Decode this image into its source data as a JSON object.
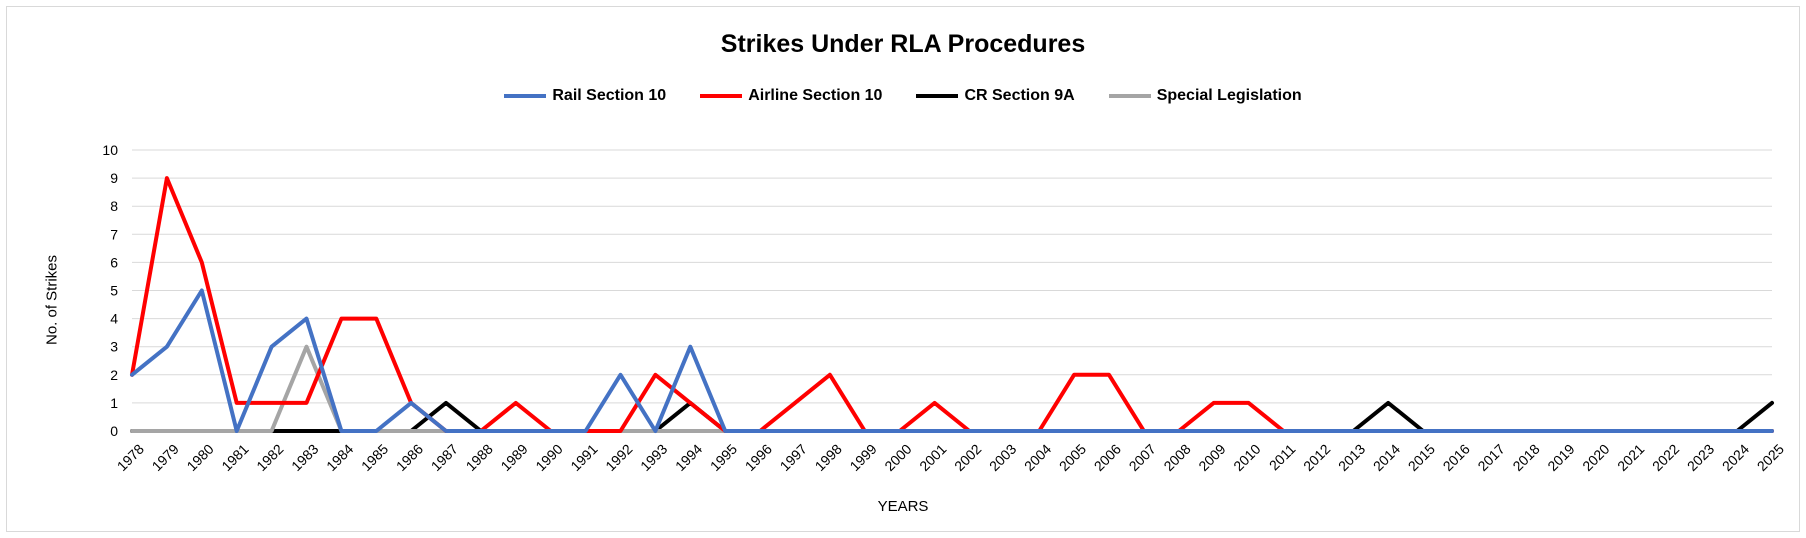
{
  "chart_data": {
    "type": "line",
    "title": "Strikes Under RLA Procedures",
    "xlabel": "YEARS",
    "ylabel": "No. of Strikes",
    "ylim": [
      0,
      10
    ],
    "yticks": [
      "0",
      "1",
      "2",
      "3",
      "4",
      "5",
      "6",
      "7",
      "8",
      "9",
      "10"
    ],
    "grid": true,
    "legend_position": "top",
    "categories": [
      "1978",
      "1979",
      "1980",
      "1981",
      "1982",
      "1983",
      "1984",
      "1985",
      "1986",
      "1987",
      "1988",
      "1989",
      "1990",
      "1991",
      "1992",
      "1993",
      "1994",
      "1995",
      "1996",
      "1997",
      "1998",
      "1999",
      "2000",
      "2001",
      "2002",
      "2003",
      "2004",
      "2005",
      "2006",
      "2007",
      "2008",
      "2009",
      "2010",
      "2011",
      "2012",
      "2013",
      "2014",
      "2015",
      "2016",
      "2017",
      "2018",
      "2019",
      "2020",
      "2021",
      "2022",
      "2023",
      "2024",
      "2025"
    ],
    "series": [
      {
        "name": "Rail Section 10",
        "color": "#4472c4",
        "values": [
          2,
          3,
          5,
          0,
          3,
          4,
          0,
          0,
          1,
          0,
          0,
          0,
          0,
          0,
          2,
          0,
          3,
          0,
          0,
          0,
          0,
          0,
          0,
          0,
          0,
          0,
          0,
          0,
          0,
          0,
          0,
          0,
          0,
          0,
          0,
          0,
          0,
          0,
          0,
          0,
          0,
          0,
          0,
          0,
          0,
          0,
          0,
          0
        ]
      },
      {
        "name": "Airline Section 10",
        "color": "#ff0000",
        "values": [
          2,
          9,
          6,
          1,
          1,
          1,
          4,
          4,
          1,
          0,
          0,
          1,
          0,
          0,
          0,
          2,
          1,
          0,
          0,
          1,
          2,
          0,
          0,
          1,
          0,
          0,
          0,
          2,
          2,
          0,
          0,
          1,
          1,
          0,
          0,
          0,
          0,
          0,
          0,
          0,
          0,
          0,
          0,
          0,
          0,
          0,
          0,
          0
        ]
      },
      {
        "name": "CR Section 9A",
        "color": "#000000",
        "values": [
          0,
          0,
          0,
          0,
          0,
          0,
          0,
          0,
          0,
          1,
          0,
          0,
          0,
          0,
          0,
          0,
          1,
          0,
          0,
          0,
          0,
          0,
          0,
          0,
          0,
          0,
          0,
          0,
          0,
          0,
          0,
          0,
          0,
          0,
          0,
          0,
          1,
          0,
          0,
          0,
          0,
          0,
          0,
          0,
          0,
          0,
          0,
          1
        ]
      },
      {
        "name": "Special Legislation",
        "color": "#a5a5a5",
        "values": [
          0,
          0,
          0,
          0,
          0,
          3,
          0,
          0,
          0,
          0,
          0,
          0,
          0,
          0,
          0,
          0,
          0,
          0,
          0,
          0,
          0,
          0,
          0,
          0,
          0,
          0,
          0,
          0,
          0,
          0,
          0,
          0,
          0,
          0,
          0,
          0,
          0,
          0,
          0,
          0,
          0,
          0,
          0,
          0,
          0,
          0,
          0,
          0
        ]
      }
    ]
  }
}
